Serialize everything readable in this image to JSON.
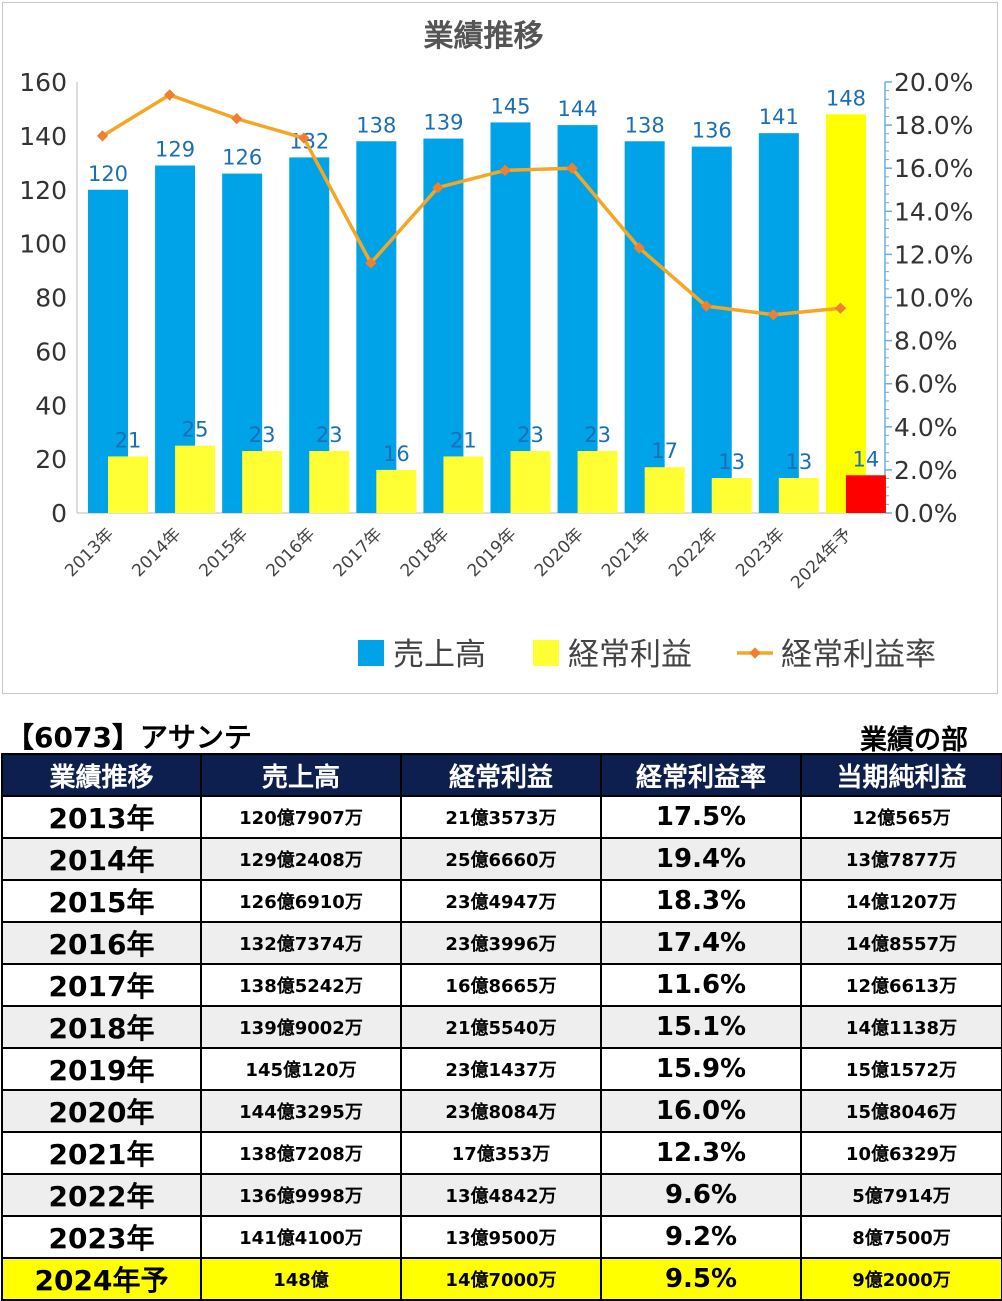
{
  "chart_data": {
    "type": "bar+line",
    "title": "業績推移",
    "categories": [
      "2013年",
      "2014年",
      "2015年",
      "2016年",
      "2017年",
      "2018年",
      "2019年",
      "2020年",
      "2021年",
      "2022年",
      "2023年",
      "2024年予"
    ],
    "series": [
      {
        "name": "売上高",
        "type": "bar",
        "axis": "left",
        "color": "#00a3e8",
        "values": [
          120,
          129,
          126,
          132,
          138,
          139,
          145,
          144,
          138,
          136,
          141,
          148
        ],
        "highlight": {
          "index": 11,
          "color": "#ffff00"
        }
      },
      {
        "name": "経常利益",
        "type": "bar",
        "axis": "left",
        "color": "#ffff33",
        "values": [
          21,
          25,
          23,
          23,
          16,
          21,
          23,
          23,
          17,
          13,
          13,
          14
        ],
        "highlight": {
          "index": 11,
          "color": "#ff0000"
        }
      },
      {
        "name": "経常利益率",
        "type": "line",
        "axis": "right",
        "color": "#f5a623",
        "values": [
          17.5,
          19.4,
          18.3,
          17.4,
          11.6,
          15.1,
          15.9,
          16.0,
          12.3,
          9.6,
          9.2,
          9.5
        ]
      }
    ],
    "ylim": [
      0,
      160
    ],
    "yticks": [
      "0",
      "20",
      "40",
      "60",
      "80",
      "100",
      "120",
      "140",
      "160"
    ],
    "y2lim": [
      0,
      20
    ],
    "y2ticks": [
      "0.0%",
      "2.0%",
      "4.0%",
      "6.0%",
      "8.0%",
      "10.0%",
      "12.0%",
      "14.0%",
      "16.0%",
      "18.0%",
      "20.0%"
    ],
    "label_color": "#1a6fb5",
    "legend_position": "bottom-right",
    "grid": false
  },
  "table": {
    "company": "【6073】アサンテ",
    "section": "業績の部",
    "headers": [
      "業績推移",
      "売上高",
      "経常利益",
      "経常利益率",
      "当期純利益"
    ],
    "rows": [
      [
        "2013年",
        "120億7907万",
        "21億3573万",
        "17.5%",
        "12億565万"
      ],
      [
        "2014年",
        "129億2408万",
        "25億6660万",
        "19.4%",
        "13億7877万"
      ],
      [
        "2015年",
        "126億6910万",
        "23億4947万",
        "18.3%",
        "14億1207万"
      ],
      [
        "2016年",
        "132億7374万",
        "23億3996万",
        "17.4%",
        "14億8557万"
      ],
      [
        "2017年",
        "138億5242万",
        "16億8665万",
        "11.6%",
        "12億6613万"
      ],
      [
        "2018年",
        "139億9002万",
        "21億5540万",
        "15.1%",
        "14億1138万"
      ],
      [
        "2019年",
        "145億120万",
        "23億1437万",
        "15.9%",
        "15億1572万"
      ],
      [
        "2020年",
        "144億3295万",
        "23億8084万",
        "16.0%",
        "15億8046万"
      ],
      [
        "2021年",
        "138億7208万",
        "17億353万",
        "12.3%",
        "10億6329万"
      ],
      [
        "2022年",
        "136億9998万",
        "13億4842万",
        "9.6%",
        "5億7914万"
      ],
      [
        "2023年",
        "141億4100万",
        "13億9500万",
        "9.2%",
        "8億7500万"
      ],
      [
        "2024年予",
        "148億",
        "14億7000万",
        "9.5%",
        "9億2000万"
      ]
    ],
    "forecast_row_color": "#ffff00",
    "header_color": "#0d1f4f"
  }
}
